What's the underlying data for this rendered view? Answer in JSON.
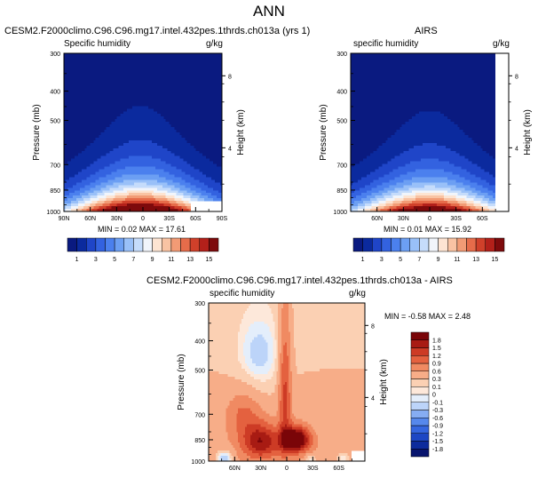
{
  "figure": {
    "title": "ANN"
  },
  "colors": {
    "humidity_scale": [
      "#0a1a80",
      "#0b2a9e",
      "#1f45c8",
      "#3362e0",
      "#4b80ee",
      "#6c9ff3",
      "#99c0f8",
      "#c5dcfb",
      "#f1f5fb",
      "#fde4d2",
      "#f9c3a3",
      "#f29b75",
      "#e66c4a",
      "#d0402a",
      "#b3201a",
      "#7e0a0c"
    ],
    "diff_scale": [
      "#08156e",
      "#0d2b9c",
      "#1d47c4",
      "#3566df",
      "#5688ec",
      "#86adf3",
      "#bcd4f9",
      "#e4eefb",
      "#fde8da",
      "#fbd0b3",
      "#f7ad88",
      "#f08a62",
      "#e4613f",
      "#cd3b25",
      "#a81b13",
      "#7a0508"
    ]
  },
  "chart_data": [
    {
      "type": "heatmap",
      "title": "CESM2.F2000climo.C96.C96.mg17.intel.432pes.1thrds.ch013a (yrs 1)",
      "left_subtitle": "Specific humidity",
      "right_subtitle": "g/kg",
      "ylabel": "Pressure (mb)",
      "ylabel_right": "Height (km)",
      "x_ticks": [
        "90N",
        "60N",
        "30N",
        "0",
        "30S",
        "60S",
        "90S"
      ],
      "y_ticks": [
        "300",
        "400",
        "500",
        "700",
        "850",
        "1000"
      ],
      "height_ticks": [
        "8",
        "4"
      ],
      "ylim": [
        1000,
        300
      ],
      "xlim": [
        90,
        -90
      ],
      "min_text": "MIN =  0.02  MAX =  17.61",
      "min": 0.02,
      "max": 17.61,
      "colorbar": {
        "labels": [
          "1",
          "3",
          "5",
          "7",
          "9",
          "11",
          "13",
          "15"
        ],
        "levels": [
          0,
          1,
          2,
          3,
          4,
          5,
          6,
          7,
          8,
          9,
          10,
          11,
          12,
          13,
          14,
          15,
          16
        ]
      },
      "peak_lat": 3,
      "masked_region": {
        "lat_from": -55,
        "lat_to": -90,
        "p_below": 930
      }
    },
    {
      "type": "heatmap",
      "title": "AIRS",
      "left_subtitle": "specific humidity",
      "right_subtitle": "g/kg",
      "ylabel": "Pressure (mb)",
      "ylabel_right": "Height (km)",
      "x_ticks": [
        "60N",
        "30N",
        "0",
        "30S",
        "60S"
      ],
      "y_ticks": [
        "300",
        "400",
        "500",
        "700",
        "850",
        "1000"
      ],
      "height_ticks": [
        "8",
        "4"
      ],
      "ylim": [
        1000,
        300
      ],
      "xlim": [
        90,
        -90
      ],
      "min_text": "MIN =  0.01  MAX =  15.92",
      "min": 0.01,
      "max": 15.92,
      "colorbar": {
        "labels": [
          "1",
          "3",
          "5",
          "7",
          "9",
          "11",
          "13",
          "15"
        ],
        "levels": [
          0,
          1,
          2,
          3,
          4,
          5,
          6,
          7,
          8,
          9,
          10,
          11,
          12,
          13,
          14,
          15,
          16
        ]
      },
      "peak_lat": 0,
      "masked_region": {
        "lat_from": -75,
        "lat_to": -90,
        "p_below": 300
      }
    },
    {
      "type": "heatmap",
      "title": "CESM2.F2000climo.C96.C96.mg17.intel.432pes.1thrds.ch013a - AIRS",
      "left_subtitle": "specific humidity",
      "right_subtitle": "g/kg",
      "ylabel": "Pressure (mb)",
      "ylabel_right": "Height (km)",
      "x_ticks": [
        "60N",
        "30N",
        "0",
        "30S",
        "60S"
      ],
      "y_ticks": [
        "300",
        "400",
        "500",
        "700",
        "850",
        "1000"
      ],
      "height_ticks": [
        "8",
        "4"
      ],
      "ylim": [
        1000,
        300
      ],
      "xlim": [
        90,
        -90
      ],
      "min_text": "MIN = -0.58  MAX =  2.48",
      "min": -0.58,
      "max": 2.48,
      "colorbar": {
        "labels": [
          "1.8",
          "1.5",
          "1.2",
          "0.9",
          "0.6",
          "0.3",
          "0.1",
          "0",
          "-0.1",
          "-0.3",
          "-0.6",
          "-0.9",
          "-1.2",
          "-1.5",
          "-1.8"
        ],
        "levels": [
          -2.1,
          -1.8,
          -1.5,
          -1.2,
          -0.9,
          -0.6,
          -0.3,
          -0.1,
          0,
          0.1,
          0.3,
          0.6,
          0.9,
          1.2,
          1.5,
          1.8,
          2.1
        ]
      },
      "masked_region": {
        "lat_from": -75,
        "lat_to": -90,
        "p_below": 920
      }
    }
  ]
}
